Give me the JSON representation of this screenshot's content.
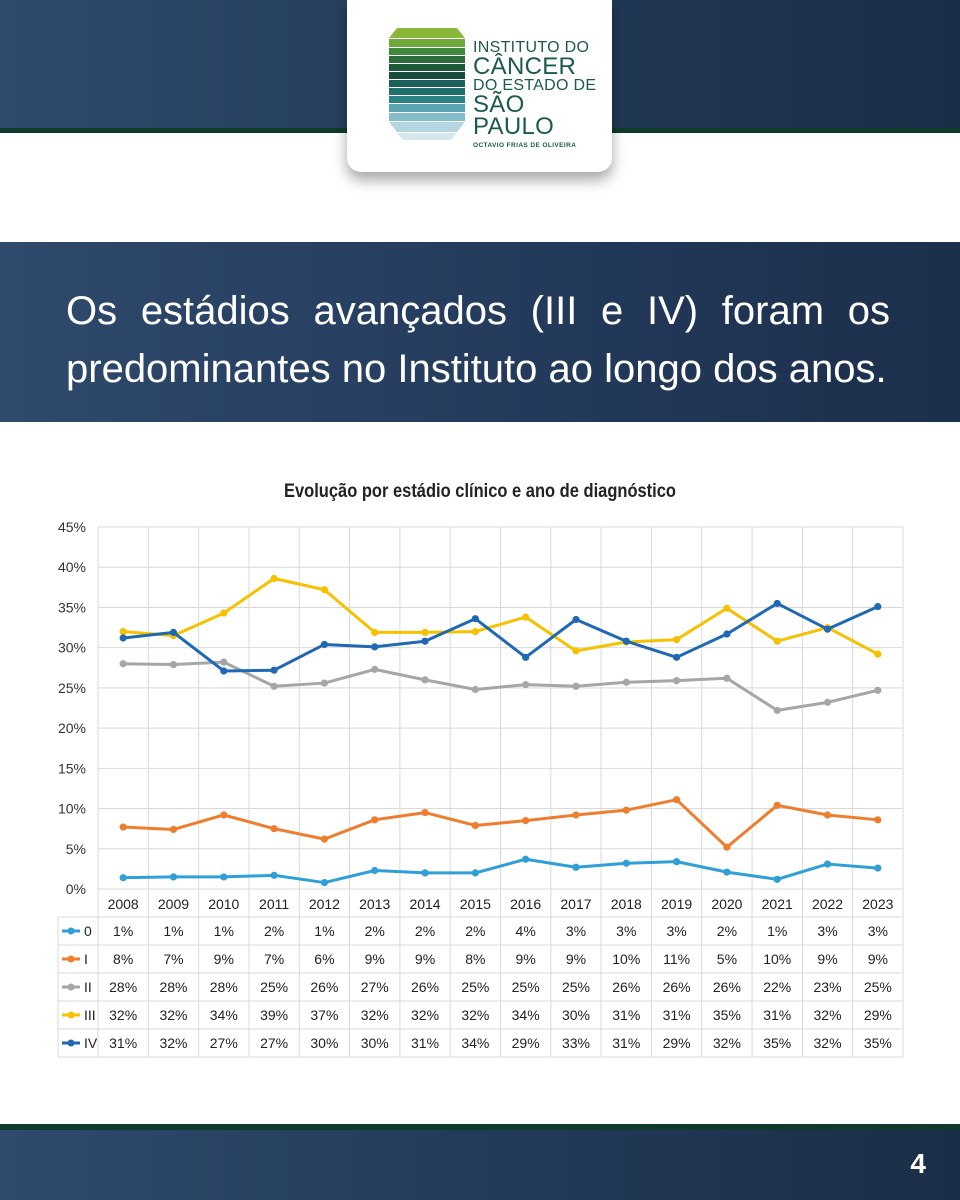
{
  "brand": {
    "line1": "INSTITUTO DO",
    "line2": "CÂNCER",
    "line3": "DO ESTADO DE",
    "line4": "SÃO PAULO",
    "subline": "OCTAVIO FRIAS DE OLIVEIRA"
  },
  "headline": "Os estádios avançados (III e IV) foram os predominantes no Instituto ao longo dos anos.",
  "page_number": "4",
  "chart_data": {
    "type": "line",
    "title": "Evolução por estádio clínico e ano de diagnóstico",
    "xlabel": "",
    "ylabel": "",
    "ylim": [
      0,
      45
    ],
    "y_ticks": [
      "0%",
      "5%",
      "10%",
      "15%",
      "20%",
      "25%",
      "30%",
      "35%",
      "40%",
      "45%"
    ],
    "grid": true,
    "legend": "data-table-left",
    "categories": [
      "2008",
      "2009",
      "2010",
      "2011",
      "2012",
      "2013",
      "2014",
      "2015",
      "2016",
      "2017",
      "2018",
      "2019",
      "2020",
      "2021",
      "2022",
      "2023"
    ],
    "series": [
      {
        "name": "0",
        "color": "#2f9fd8",
        "values": [
          1.4,
          1.5,
          1.5,
          1.7,
          0.8,
          2.3,
          2.0,
          2.0,
          3.7,
          2.7,
          3.2,
          3.4,
          2.1,
          1.2,
          3.1,
          2.6
        ],
        "labels": [
          "1%",
          "1%",
          "1%",
          "2%",
          "1%",
          "2%",
          "2%",
          "2%",
          "4%",
          "3%",
          "3%",
          "3%",
          "2%",
          "1%",
          "3%",
          "3%"
        ]
      },
      {
        "name": "I",
        "color": "#ef7d2e",
        "values": [
          7.7,
          7.4,
          9.2,
          7.5,
          6.2,
          8.6,
          9.5,
          7.9,
          8.5,
          9.2,
          9.8,
          11.1,
          5.2,
          10.4,
          9.2,
          8.6
        ],
        "labels": [
          "8%",
          "7%",
          "9%",
          "7%",
          "6%",
          "9%",
          "9%",
          "8%",
          "9%",
          "9%",
          "10%",
          "11%",
          "5%",
          "10%",
          "9%",
          "9%"
        ]
      },
      {
        "name": "II",
        "color": "#a6a6a6",
        "values": [
          28.0,
          27.9,
          28.2,
          25.2,
          25.6,
          27.3,
          26.0,
          24.8,
          25.4,
          25.2,
          25.7,
          25.9,
          26.2,
          22.2,
          23.2,
          24.7
        ],
        "labels": [
          "28%",
          "28%",
          "28%",
          "25%",
          "26%",
          "27%",
          "26%",
          "25%",
          "25%",
          "25%",
          "26%",
          "26%",
          "26%",
          "22%",
          "23%",
          "25%"
        ]
      },
      {
        "name": "III",
        "color": "#f6c100",
        "values": [
          32.0,
          31.5,
          34.3,
          38.6,
          37.2,
          31.9,
          31.9,
          32.0,
          33.8,
          29.6,
          30.7,
          31.0,
          34.9,
          30.8,
          32.5,
          29.2
        ],
        "labels": [
          "32%",
          "32%",
          "34%",
          "39%",
          "37%",
          "32%",
          "32%",
          "32%",
          "34%",
          "30%",
          "31%",
          "31%",
          "35%",
          "31%",
          "32%",
          "29%"
        ]
      },
      {
        "name": "IV",
        "color": "#1f68b4",
        "values": [
          31.2,
          31.9,
          27.1,
          27.2,
          30.4,
          30.1,
          30.8,
          33.6,
          28.8,
          33.5,
          30.8,
          28.8,
          31.7,
          35.5,
          32.3,
          35.1
        ],
        "labels": [
          "31%",
          "32%",
          "27%",
          "27%",
          "30%",
          "30%",
          "31%",
          "34%",
          "29%",
          "33%",
          "31%",
          "29%",
          "32%",
          "35%",
          "32%",
          "35%"
        ]
      }
    ]
  }
}
